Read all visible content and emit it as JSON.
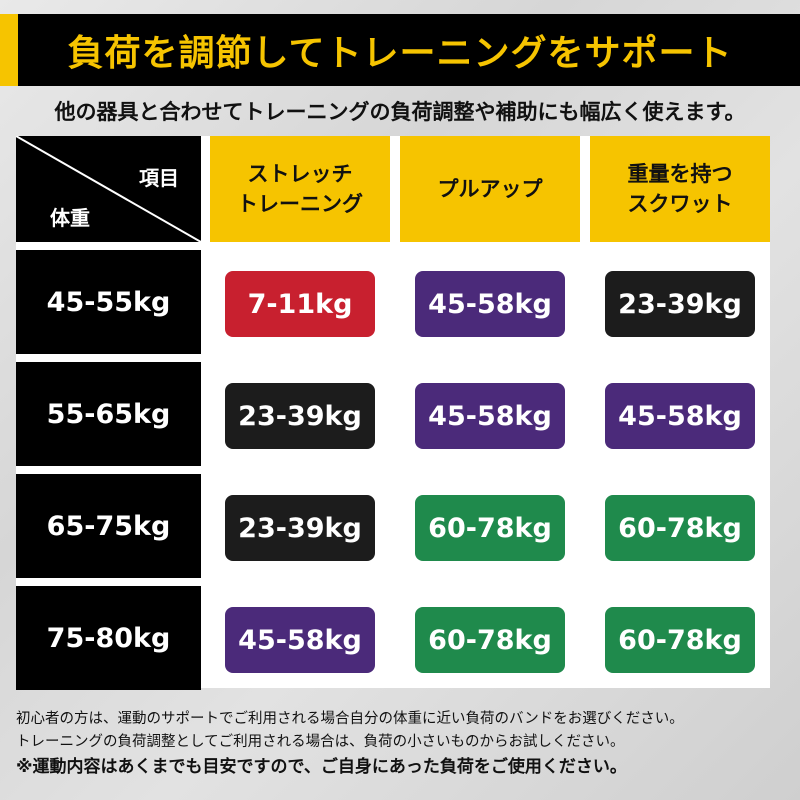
{
  "banner": {
    "title": "負荷を調節してトレーニングをサポート",
    "accent": "#f6c400"
  },
  "subtitle": "他の器具と合わせてトレーニングの負荷調整や補助にも幅広く使えます。",
  "table": {
    "corner": {
      "top": "項目",
      "bottom": "体重"
    },
    "headers": [
      "ストレッチ\nトレーニング",
      "プルアップ",
      "重量を持つ\nスクワット"
    ],
    "rows": [
      {
        "label": "45-55kg",
        "cells": [
          {
            "text": "7-11kg",
            "color": "#c8202f"
          },
          {
            "text": "45-58kg",
            "color": "#4b2a7a"
          },
          {
            "text": "23-39kg",
            "color": "#1c1c1c"
          }
        ]
      },
      {
        "label": "55-65kg",
        "cells": [
          {
            "text": "23-39kg",
            "color": "#1c1c1c"
          },
          {
            "text": "45-58kg",
            "color": "#4b2a7a"
          },
          {
            "text": "45-58kg",
            "color": "#4b2a7a"
          }
        ]
      },
      {
        "label": "65-75kg",
        "cells": [
          {
            "text": "23-39kg",
            "color": "#1c1c1c"
          },
          {
            "text": "60-78kg",
            "color": "#1f8a4c"
          },
          {
            "text": "60-78kg",
            "color": "#1f8a4c"
          }
        ]
      },
      {
        "label": "75-80kg",
        "cells": [
          {
            "text": "45-58kg",
            "color": "#4b2a7a"
          },
          {
            "text": "60-78kg",
            "color": "#1f8a4c"
          },
          {
            "text": "60-78kg",
            "color": "#1f8a4c"
          }
        ]
      }
    ]
  },
  "notes": [
    "初心者の方は、運動のサポートでご利用される場合自分の体重に近い負荷のバンドをお選びください。",
    "トレーニングの負荷調整としてご利用される場合は、負荷の小さいものからお試しください。",
    "※運動内容はあくまでも目安ですので、ご自身にあった負荷をご使用ください。"
  ]
}
